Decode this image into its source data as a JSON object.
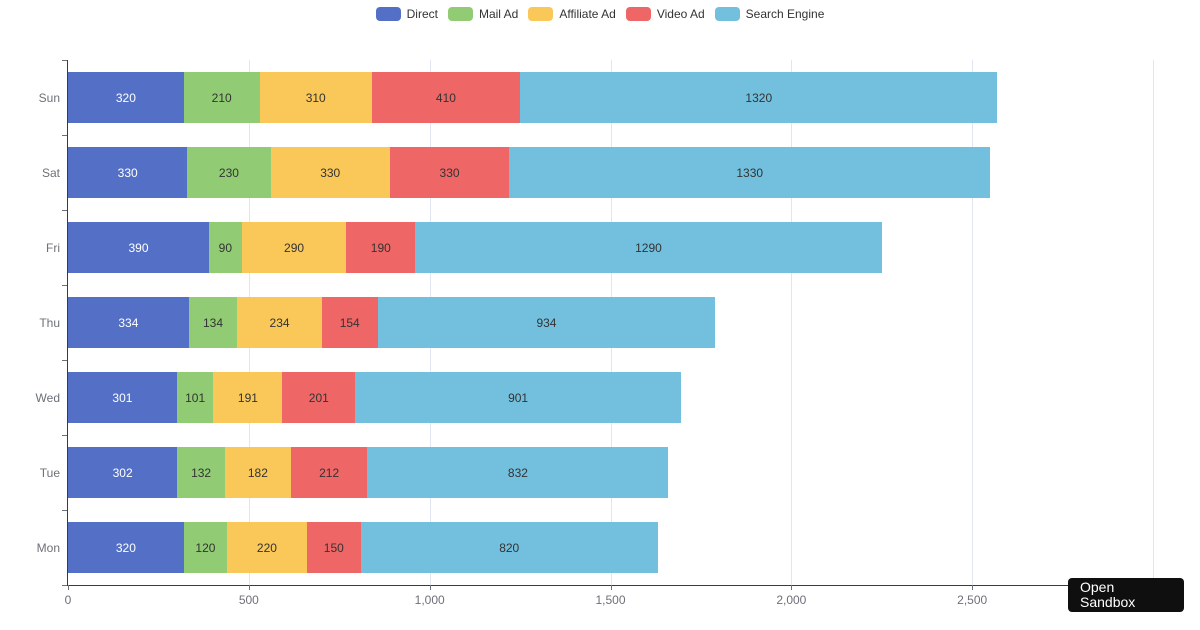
{
  "chart_data": {
    "type": "bar",
    "orientation": "horizontal",
    "stacked": true,
    "title": "",
    "xlabel": "",
    "ylabel": "",
    "categories": [
      "Mon",
      "Tue",
      "Wed",
      "Thu",
      "Fri",
      "Sat",
      "Sun"
    ],
    "series": [
      {
        "name": "Direct",
        "color": "#5470c6",
        "label_color": "#ffffff",
        "values": [
          320,
          302,
          301,
          334,
          390,
          330,
          320
        ]
      },
      {
        "name": "Mail Ad",
        "color": "#91cc75",
        "label_color": "#333333",
        "values": [
          120,
          132,
          101,
          134,
          90,
          230,
          210
        ]
      },
      {
        "name": "Affiliate Ad",
        "color": "#fac858",
        "label_color": "#333333",
        "values": [
          220,
          182,
          191,
          234,
          290,
          330,
          310
        ]
      },
      {
        "name": "Video Ad",
        "color": "#ee6666",
        "label_color": "#333333",
        "values": [
          150,
          212,
          201,
          154,
          190,
          330,
          410
        ]
      },
      {
        "name": "Search Engine",
        "color": "#73c0de",
        "label_color": "#333333",
        "values": [
          820,
          832,
          901,
          934,
          1290,
          1330,
          1320
        ]
      }
    ],
    "xlim": [
      0,
      3000
    ],
    "x_tick_step": 500,
    "x_ticks": [
      "0",
      "500",
      "1,000",
      "1,500",
      "2,000",
      "2,500"
    ],
    "grid": true,
    "legend_position": "top",
    "gridline_color": "#e0e6f1",
    "axis_color": "#3b3b3b",
    "tick_label_color": "#6e7079"
  },
  "sandbox_button": {
    "label": "Open Sandbox"
  }
}
